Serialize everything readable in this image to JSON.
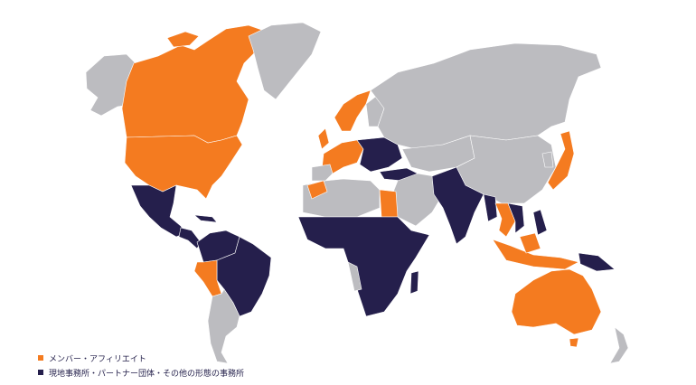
{
  "colors": {
    "member": "#f47b20",
    "office": "#251f4c",
    "other": "#bcbcc0"
  },
  "legend": [
    {
      "label": "メンバー・アフィリエイト",
      "color": "#f47b20"
    },
    {
      "label": "現地事務所・パートナー団体・その他の形態の事務所",
      "color": "#251f4c"
    }
  ]
}
